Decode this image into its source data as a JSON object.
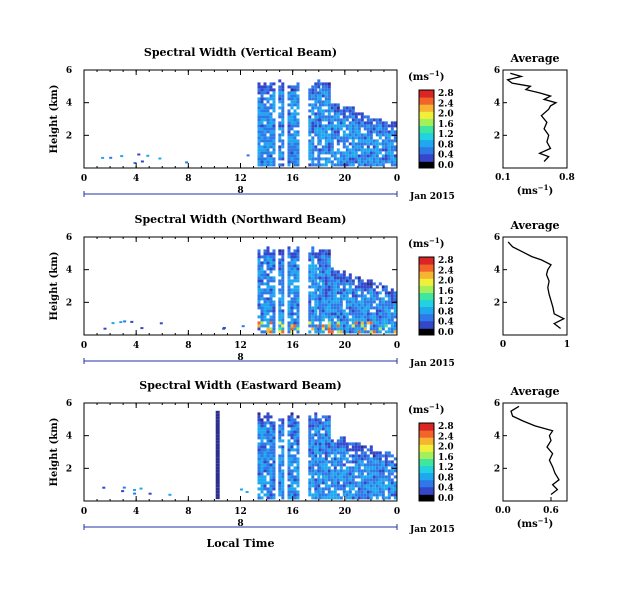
{
  "chart_data": [
    {
      "type": "heatmap",
      "title": "Spectral Width (Vertical Beam)",
      "xlabel": "",
      "ylabel": "Height (km)",
      "xlim": [
        0,
        24
      ],
      "ylim": [
        0,
        6
      ],
      "x_ticks": [
        "0",
        "4",
        "8",
        "12",
        "16",
        "20",
        "0"
      ],
      "y_ticks": [
        "2",
        "4",
        "6"
      ],
      "day_marker": "8",
      "date_label": "Jan 2015",
      "colorbar": {
        "unit": "(ms",
        "unit_exp": "−1",
        "unit_close": ")",
        "ticks": [
          "0.0",
          "0.4",
          "0.8",
          "1.2",
          "1.6",
          "2.0",
          "2.4",
          "2.8"
        ]
      },
      "data_windows": [
        [
          13.3,
          14.6
        ],
        [
          14.9,
          15.2
        ],
        [
          15.6,
          16.5
        ],
        [
          17.2,
          18.0
        ],
        [
          18.0,
          23.8
        ]
      ],
      "average_profile": {
        "title": "Average",
        "xlabel": "(ms",
        "xlabel_exp": "−1",
        "xlabel_close": ")",
        "x_ticks": [
          "0.1",
          "0.8"
        ],
        "xlim": [
          0.1,
          0.8
        ],
        "ylim": [
          0,
          6
        ],
        "y_ticks": [
          "2",
          "4",
          "6"
        ],
        "points": [
          [
            0.55,
            0.4
          ],
          [
            0.6,
            0.7
          ],
          [
            0.5,
            0.9
          ],
          [
            0.62,
            1.2
          ],
          [
            0.58,
            1.6
          ],
          [
            0.6,
            2.0
          ],
          [
            0.55,
            2.4
          ],
          [
            0.58,
            2.8
          ],
          [
            0.52,
            3.2
          ],
          [
            0.6,
            3.6
          ],
          [
            0.62,
            3.8
          ],
          [
            0.68,
            4.0
          ],
          [
            0.55,
            4.2
          ],
          [
            0.62,
            4.4
          ],
          [
            0.5,
            4.6
          ],
          [
            0.35,
            4.8
          ],
          [
            0.4,
            5.0
          ],
          [
            0.2,
            5.2
          ],
          [
            0.15,
            5.4
          ],
          [
            0.3,
            5.6
          ],
          [
            0.18,
            5.8
          ]
        ]
      }
    },
    {
      "type": "heatmap",
      "title": "Spectral Width (Northward Beam)",
      "xlabel": "",
      "ylabel": "Height (km)",
      "xlim": [
        0,
        24
      ],
      "ylim": [
        0,
        6
      ],
      "x_ticks": [
        "0",
        "4",
        "8",
        "12",
        "16",
        "20",
        "0"
      ],
      "y_ticks": [
        "2",
        "4",
        "6"
      ],
      "day_marker": "8",
      "date_label": "Jan 2015",
      "colorbar": {
        "unit": "(ms",
        "unit_exp": "−1",
        "unit_close": ")",
        "ticks": [
          "0.0",
          "0.4",
          "0.8",
          "1.2",
          "1.6",
          "2.0",
          "2.4",
          "2.8"
        ]
      },
      "data_windows": [
        [
          13.3,
          14.6
        ],
        [
          14.9,
          15.2
        ],
        [
          15.6,
          16.5
        ],
        [
          17.2,
          18.0
        ],
        [
          18.0,
          23.8
        ]
      ],
      "average_profile": {
        "title": "Average",
        "xlabel": "",
        "x_ticks": [
          "0",
          "1"
        ],
        "xlim": [
          0,
          1
        ],
        "ylim": [
          0,
          6
        ],
        "y_ticks": [
          "2",
          "4",
          "6"
        ],
        "points": [
          [
            0.9,
            0.4
          ],
          [
            0.8,
            0.7
          ],
          [
            0.95,
            1.0
          ],
          [
            0.8,
            1.3
          ],
          [
            0.78,
            1.7
          ],
          [
            0.75,
            2.1
          ],
          [
            0.72,
            2.5
          ],
          [
            0.7,
            2.9
          ],
          [
            0.72,
            3.3
          ],
          [
            0.68,
            3.7
          ],
          [
            0.7,
            4.0
          ],
          [
            0.75,
            4.3
          ],
          [
            0.6,
            4.6
          ],
          [
            0.45,
            4.8
          ],
          [
            0.3,
            5.1
          ],
          [
            0.15,
            5.4
          ],
          [
            0.08,
            5.7
          ]
        ]
      }
    },
    {
      "type": "heatmap",
      "title": "Spectral Width (Eastward Beam)",
      "xlabel": "Local Time",
      "ylabel": "Height (km)",
      "xlim": [
        0,
        24
      ],
      "ylim": [
        0,
        6
      ],
      "x_ticks": [
        "0",
        "4",
        "8",
        "12",
        "16",
        "20",
        "0"
      ],
      "y_ticks": [
        "2",
        "4",
        "6"
      ],
      "day_marker": "8",
      "date_label": "Jan 2015",
      "colorbar": {
        "unit": "(ms",
        "unit_exp": "−1",
        "unit_close": ")",
        "ticks": [
          "0.0",
          "0.4",
          "0.8",
          "1.2",
          "1.6",
          "2.0",
          "2.4",
          "2.8"
        ]
      },
      "data_windows": [
        [
          13.3,
          14.6
        ],
        [
          14.9,
          15.2
        ],
        [
          15.6,
          16.5
        ],
        [
          17.2,
          18.0
        ],
        [
          18.0,
          23.8
        ]
      ],
      "average_profile": {
        "title": "Average",
        "xlabel": "(ms",
        "xlabel_exp": "−1",
        "xlabel_close": ")",
        "x_ticks": [
          "0.0",
          "0.6"
        ],
        "xlim": [
          0,
          0.8
        ],
        "ylim": [
          0,
          6
        ],
        "y_ticks": [
          "2",
          "4",
          "6"
        ],
        "points": [
          [
            0.6,
            0.4
          ],
          [
            0.68,
            0.7
          ],
          [
            0.62,
            1.0
          ],
          [
            0.7,
            1.3
          ],
          [
            0.65,
            1.7
          ],
          [
            0.62,
            2.1
          ],
          [
            0.58,
            2.5
          ],
          [
            0.62,
            2.9
          ],
          [
            0.55,
            3.3
          ],
          [
            0.6,
            3.7
          ],
          [
            0.58,
            4.0
          ],
          [
            0.62,
            4.3
          ],
          [
            0.4,
            4.6
          ],
          [
            0.25,
            4.9
          ],
          [
            0.12,
            5.2
          ],
          [
            0.1,
            5.5
          ],
          [
            0.2,
            5.8
          ]
        ]
      }
    }
  ],
  "colormap": [
    "#2b2d8f",
    "#3446c9",
    "#2e78e8",
    "#1fa8f0",
    "#22d2e0",
    "#3ee6a0",
    "#a3f05a",
    "#f0f03c",
    "#f7b431",
    "#f2642a",
    "#d92523"
  ]
}
